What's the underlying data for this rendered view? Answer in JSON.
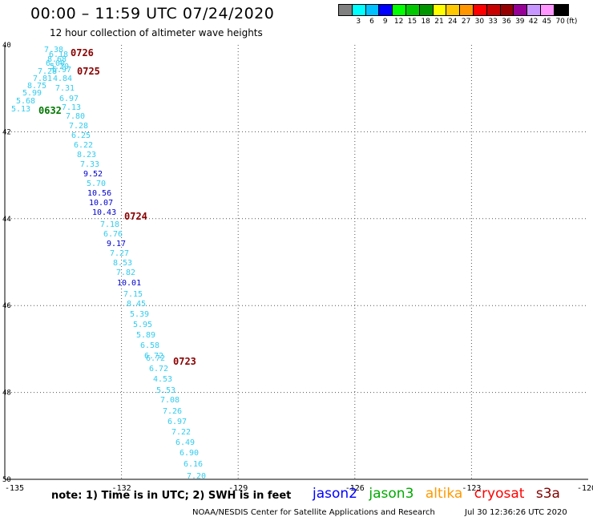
{
  "header": {
    "title": "00:00 – 11:59 UTC 07/24/2020",
    "subtitle": "12 hour collection of altimeter wave heights"
  },
  "legend": {
    "unit": "(ft)",
    "bins": [
      {
        "label": "",
        "color": "#808080"
      },
      {
        "label": "3",
        "color": "#00ffff"
      },
      {
        "label": "6",
        "color": "#00c0ff"
      },
      {
        "label": "9",
        "color": "#0000ff"
      },
      {
        "label": "12",
        "color": "#00ff00"
      },
      {
        "label": "15",
        "color": "#00c800"
      },
      {
        "label": "18",
        "color": "#009600"
      },
      {
        "label": "21",
        "color": "#ffff00"
      },
      {
        "label": "24",
        "color": "#ffc800"
      },
      {
        "label": "27",
        "color": "#ff9600"
      },
      {
        "label": "30",
        "color": "#ff0000"
      },
      {
        "label": "33",
        "color": "#c80000"
      },
      {
        "label": "36",
        "color": "#960000"
      },
      {
        "label": "39",
        "color": "#960096"
      },
      {
        "label": "42",
        "color": "#c896ff"
      },
      {
        "label": "45",
        "color": "#ff96ff"
      },
      {
        "label": "70",
        "color": "#000000"
      }
    ]
  },
  "map": {
    "lon_ticks": [
      "-135",
      "-132",
      "-129",
      "-126",
      "-123",
      "-120"
    ],
    "lat_ticks": [
      "40",
      "42",
      "44",
      "46",
      "48",
      "50"
    ],
    "lon_range": [
      -135,
      -120
    ],
    "lat_range": [
      40,
      50
    ],
    "grid": "dotted"
  },
  "track": {
    "color_light": "#33ccee",
    "color_dark": "#0000cc",
    "readings": [
      {
        "text": "7.38",
        "tone": "light"
      },
      {
        "text": "6.18",
        "tone": "light"
      },
      {
        "text": "8.68",
        "tone": "light"
      },
      {
        "text": "6.00",
        "tone": "light"
      },
      {
        "text": "5.20",
        "tone": "light"
      },
      {
        "text": "6.97",
        "tone": "light"
      },
      {
        "text": "7.28",
        "tone": "light"
      },
      {
        "text": "4.84",
        "tone": "light"
      },
      {
        "text": "7.81",
        "tone": "light"
      },
      {
        "text": "8.75",
        "tone": "light"
      },
      {
        "text": "7.31",
        "tone": "light"
      },
      {
        "text": "5.99",
        "tone": "light"
      },
      {
        "text": "6.97",
        "tone": "light"
      },
      {
        "text": "5.68",
        "tone": "light"
      },
      {
        "text": "7.13",
        "tone": "light"
      },
      {
        "text": "5.13",
        "tone": "light"
      },
      {
        "text": "7.80",
        "tone": "light"
      },
      {
        "text": "7.28",
        "tone": "light"
      },
      {
        "text": "6.25",
        "tone": "light"
      },
      {
        "text": "6.22",
        "tone": "light"
      },
      {
        "text": "8.23",
        "tone": "light"
      },
      {
        "text": "7.33",
        "tone": "light"
      },
      {
        "text": "9.52",
        "tone": "dark"
      },
      {
        "text": "5.70",
        "tone": "light"
      },
      {
        "text": "10.56",
        "tone": "dark"
      },
      {
        "text": "10.07",
        "tone": "dark"
      },
      {
        "text": "10.43",
        "tone": "dark"
      },
      {
        "text": "7.18",
        "tone": "light"
      },
      {
        "text": "6.76",
        "tone": "light"
      },
      {
        "text": "9.17",
        "tone": "dark"
      },
      {
        "text": "7.27",
        "tone": "light"
      },
      {
        "text": "8.53",
        "tone": "light"
      },
      {
        "text": "7.82",
        "tone": "light"
      },
      {
        "text": "10.01",
        "tone": "dark"
      },
      {
        "text": "7.15",
        "tone": "light"
      },
      {
        "text": "8.45",
        "tone": "light"
      },
      {
        "text": "5.39",
        "tone": "light"
      },
      {
        "text": "5.95",
        "tone": "light"
      },
      {
        "text": "5.89",
        "tone": "light"
      },
      {
        "text": "6.58",
        "tone": "light"
      },
      {
        "text": "6.72",
        "tone": "light"
      },
      {
        "text": "6.72",
        "tone": "light"
      },
      {
        "text": "6.72",
        "tone": "light"
      },
      {
        "text": "4.53",
        "tone": "light"
      },
      {
        "text": "5.53",
        "tone": "light"
      },
      {
        "text": "7.08",
        "tone": "light"
      },
      {
        "text": "7.26",
        "tone": "light"
      },
      {
        "text": "6.97",
        "tone": "light"
      },
      {
        "text": "7.22",
        "tone": "light"
      },
      {
        "text": "6.49",
        "tone": "light"
      },
      {
        "text": "6.90",
        "tone": "light"
      },
      {
        "text": "6.16",
        "tone": "light"
      },
      {
        "text": "7.20",
        "tone": "light"
      }
    ],
    "time_labels": [
      {
        "text": "0726",
        "color": "#880000"
      },
      {
        "text": "0725",
        "color": "#880000"
      },
      {
        "text": "0632",
        "color": "#007700"
      },
      {
        "text": "0724",
        "color": "#880000"
      },
      {
        "text": "0723",
        "color": "#880000"
      }
    ]
  },
  "footer": {
    "note": "note: 1) Time is in UTC; 2) SWH is in feet",
    "satellites": [
      {
        "name": "jason2",
        "color": "#0000ff"
      },
      {
        "name": "jason3",
        "color": "#00aa00"
      },
      {
        "name": "altika",
        "color": "#ff9900"
      },
      {
        "name": "cryosat",
        "color": "#ff0000"
      },
      {
        "name": "s3a",
        "color": "#800000"
      }
    ],
    "credit": "NOAA/NESDIS Center for Satellite Applications and Research",
    "timestamp": "Jul 30 12:36:26 UTC 2020"
  }
}
